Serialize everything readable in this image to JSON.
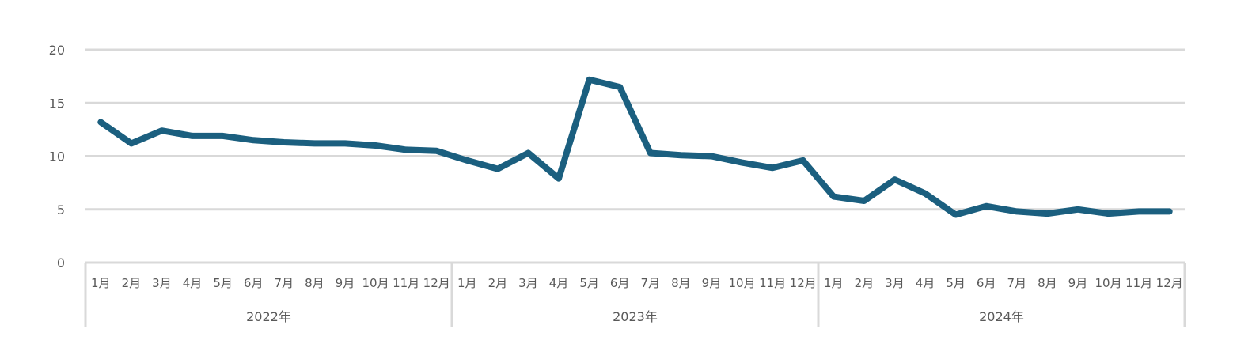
{
  "colors": {
    "series": "#1b5f7f",
    "grid": "#d9d9d9",
    "text": "#595959"
  },
  "chart_data": {
    "type": "line",
    "title": "",
    "xlabel": "",
    "ylabel": "",
    "ylim": [
      0,
      20
    ],
    "yticks": [
      0,
      5,
      10,
      15,
      20
    ],
    "ytick_labels": [
      "0",
      "5",
      "10",
      "15",
      "20"
    ],
    "grid": true,
    "legend": "none",
    "year_groups": [
      {
        "label": "2022年",
        "months": [
          "1月",
          "2月",
          "3月",
          "4月",
          "5月",
          "6月",
          "7月",
          "8月",
          "9月",
          "10月",
          "11月",
          "12月"
        ]
      },
      {
        "label": "2023年",
        "months": [
          "1月",
          "2月",
          "3月",
          "4月",
          "5月",
          "6月",
          "7月",
          "8月",
          "9月",
          "10月",
          "11月",
          "12月"
        ]
      },
      {
        "label": "2024年",
        "months": [
          "1月",
          "2月",
          "3月",
          "4月",
          "5月",
          "6月",
          "7月",
          "8月",
          "9月",
          "10月",
          "11月",
          "12月"
        ]
      }
    ],
    "series": [
      {
        "values": [
          13.2,
          11.2,
          12.4,
          11.9,
          11.9,
          11.5,
          11.3,
          11.2,
          11.2,
          11.0,
          10.6,
          10.5,
          9.6,
          8.8,
          10.3,
          7.9,
          17.2,
          16.5,
          10.3,
          10.1,
          10.0,
          9.4,
          8.9,
          9.6,
          6.2,
          5.8,
          7.8,
          6.5,
          4.5,
          5.3,
          4.8,
          4.6,
          5.0,
          4.6,
          4.8,
          4.8
        ]
      }
    ]
  }
}
